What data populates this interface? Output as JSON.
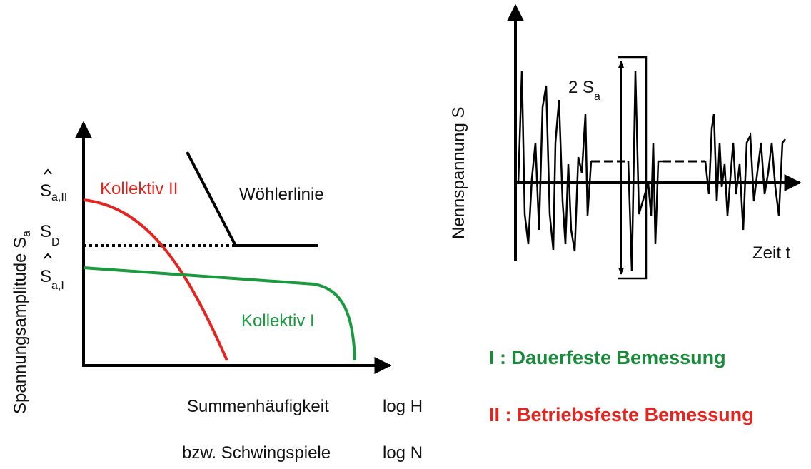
{
  "left_diagram": {
    "y_axis_label": {
      "text": "Spannungsamplitude S",
      "sub": "a"
    },
    "levels": [
      {
        "symbol": "S",
        "sub": "a,II"
      },
      {
        "symbol": "S",
        "sub": "D"
      },
      {
        "symbol": "S",
        "sub": "a,I"
      }
    ],
    "curves": {
      "kollektiv_2": "Kollektiv II",
      "woehler": "Wöhlerlinie",
      "kollektiv_1": "Kollektiv I"
    },
    "x_axis_label": [
      [
        "Summenhäufigkeit",
        "log H"
      ],
      [
        "bzw. Schwingspiele",
        "log N"
      ]
    ]
  },
  "right_diagram": {
    "y_axis_label": "Nennspannung S",
    "amplitude": {
      "text": "2 S",
      "sub": "a"
    },
    "x_axis_label": "Zeit t"
  },
  "legend": [
    "I : Dauerfeste Bemessung",
    "II : Betriebsfeste Bemessung"
  ]
}
